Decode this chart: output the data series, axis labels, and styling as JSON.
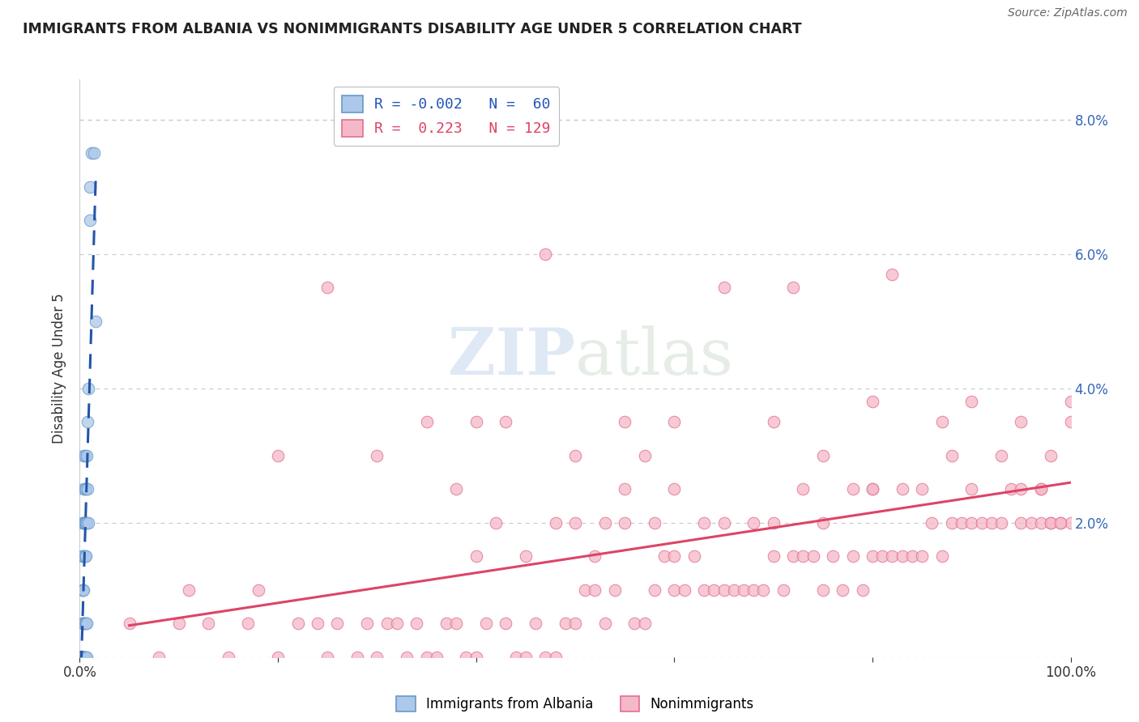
{
  "title": "IMMIGRANTS FROM ALBANIA VS NONIMMIGRANTS DISABILITY AGE UNDER 5 CORRELATION CHART",
  "source": "Source: ZipAtlas.com",
  "ylabel": "Disability Age Under 5",
  "xlim": [
    0,
    1.0
  ],
  "ylim": [
    0,
    0.086
  ],
  "xticks": [
    0.0,
    0.2,
    0.4,
    0.6,
    0.8,
    1.0
  ],
  "xticklabels": [
    "0.0%",
    "",
    "",
    "",
    "",
    "100.0%"
  ],
  "yticks": [
    0.0,
    0.02,
    0.04,
    0.06,
    0.08
  ],
  "yticklabels": [
    "",
    "2.0%",
    "4.0%",
    "6.0%",
    "8.0%"
  ],
  "blue_R": -0.002,
  "blue_N": 60,
  "pink_R": 0.223,
  "pink_N": 129,
  "blue_marker_color": "#adc8e8",
  "blue_edge_color": "#6699cc",
  "pink_marker_color": "#f5b8c8",
  "pink_edge_color": "#e07090",
  "blue_line_color": "#2255aa",
  "pink_line_color": "#dd4466",
  "watermark_zip": "ZIP",
  "watermark_atlas": "atlas",
  "blue_x": [
    0.001,
    0.001,
    0.001,
    0.001,
    0.001,
    0.001,
    0.001,
    0.001,
    0.002,
    0.002,
    0.002,
    0.002,
    0.002,
    0.002,
    0.003,
    0.003,
    0.003,
    0.003,
    0.003,
    0.003,
    0.003,
    0.003,
    0.003,
    0.004,
    0.004,
    0.004,
    0.004,
    0.004,
    0.004,
    0.004,
    0.004,
    0.004,
    0.004,
    0.004,
    0.005,
    0.005,
    0.005,
    0.005,
    0.005,
    0.005,
    0.005,
    0.005,
    0.006,
    0.006,
    0.006,
    0.006,
    0.006,
    0.007,
    0.007,
    0.007,
    0.007,
    0.008,
    0.008,
    0.009,
    0.009,
    0.01,
    0.01,
    0.012,
    0.014,
    0.016
  ],
  "blue_y": [
    0.0,
    0.0,
    0.0,
    0.0,
    0.0,
    0.0,
    0.0,
    0.0,
    0.0,
    0.0,
    0.0,
    0.0,
    0.0,
    0.0,
    0.0,
    0.0,
    0.005,
    0.005,
    0.01,
    0.01,
    0.015,
    0.015,
    0.02,
    0.0,
    0.0,
    0.0,
    0.0,
    0.005,
    0.01,
    0.015,
    0.02,
    0.02,
    0.025,
    0.03,
    0.0,
    0.0,
    0.005,
    0.015,
    0.02,
    0.02,
    0.025,
    0.03,
    0.0,
    0.005,
    0.015,
    0.02,
    0.025,
    0.0,
    0.005,
    0.02,
    0.03,
    0.025,
    0.035,
    0.02,
    0.04,
    0.065,
    0.07,
    0.075,
    0.075,
    0.05
  ],
  "pink_x": [
    0.05,
    0.08,
    0.1,
    0.11,
    0.13,
    0.15,
    0.17,
    0.18,
    0.2,
    0.22,
    0.24,
    0.25,
    0.26,
    0.28,
    0.29,
    0.3,
    0.31,
    0.32,
    0.33,
    0.34,
    0.35,
    0.36,
    0.37,
    0.38,
    0.39,
    0.4,
    0.41,
    0.43,
    0.44,
    0.45,
    0.46,
    0.47,
    0.48,
    0.49,
    0.5,
    0.51,
    0.52,
    0.52,
    0.53,
    0.54,
    0.55,
    0.56,
    0.57,
    0.58,
    0.59,
    0.6,
    0.61,
    0.62,
    0.63,
    0.64,
    0.65,
    0.66,
    0.67,
    0.68,
    0.69,
    0.7,
    0.71,
    0.72,
    0.73,
    0.74,
    0.75,
    0.76,
    0.77,
    0.78,
    0.79,
    0.8,
    0.81,
    0.82,
    0.83,
    0.84,
    0.85,
    0.86,
    0.87,
    0.88,
    0.89,
    0.9,
    0.91,
    0.92,
    0.93,
    0.94,
    0.95,
    0.96,
    0.97,
    0.98,
    0.99,
    1.0,
    0.4,
    0.45,
    0.5,
    0.55,
    0.6,
    0.65,
    0.7,
    0.75,
    0.8,
    0.85,
    0.9,
    0.95,
    0.42,
    0.48,
    0.53,
    0.58,
    0.63,
    0.68,
    0.73,
    0.78,
    0.83,
    0.88,
    0.93,
    0.98,
    0.35,
    0.55,
    0.75,
    0.95,
    0.43,
    0.6,
    0.8,
    0.3,
    0.5,
    0.7,
    0.9,
    0.25,
    0.47,
    0.65,
    0.82,
    0.38,
    0.57,
    0.72,
    0.87,
    0.97,
    0.2,
    0.4,
    0.6,
    0.8,
    1.0,
    0.97,
    0.98,
    0.99,
    1.0
  ],
  "pink_y": [
    0.005,
    0.0,
    0.005,
    0.01,
    0.005,
    0.0,
    0.005,
    0.01,
    0.0,
    0.005,
    0.005,
    0.0,
    0.005,
    0.0,
    0.005,
    0.0,
    0.005,
    0.005,
    0.0,
    0.005,
    0.0,
    0.0,
    0.005,
    0.005,
    0.0,
    0.0,
    0.005,
    0.005,
    0.0,
    0.0,
    0.005,
    0.0,
    0.0,
    0.005,
    0.005,
    0.01,
    0.01,
    0.015,
    0.005,
    0.01,
    0.035,
    0.005,
    0.005,
    0.01,
    0.015,
    0.01,
    0.01,
    0.015,
    0.01,
    0.01,
    0.01,
    0.01,
    0.01,
    0.01,
    0.01,
    0.015,
    0.01,
    0.015,
    0.015,
    0.015,
    0.01,
    0.015,
    0.01,
    0.015,
    0.01,
    0.015,
    0.015,
    0.015,
    0.015,
    0.015,
    0.015,
    0.02,
    0.015,
    0.02,
    0.02,
    0.02,
    0.02,
    0.02,
    0.02,
    0.025,
    0.02,
    0.02,
    0.025,
    0.02,
    0.02,
    0.02,
    0.015,
    0.015,
    0.02,
    0.02,
    0.015,
    0.02,
    0.02,
    0.02,
    0.025,
    0.025,
    0.025,
    0.025,
    0.02,
    0.02,
    0.02,
    0.02,
    0.02,
    0.02,
    0.025,
    0.025,
    0.025,
    0.03,
    0.03,
    0.03,
    0.035,
    0.025,
    0.03,
    0.035,
    0.035,
    0.025,
    0.025,
    0.03,
    0.03,
    0.035,
    0.038,
    0.055,
    0.06,
    0.055,
    0.057,
    0.025,
    0.03,
    0.055,
    0.035,
    0.025,
    0.03,
    0.035,
    0.035,
    0.038,
    0.038,
    0.02,
    0.02,
    0.02,
    0.035
  ]
}
